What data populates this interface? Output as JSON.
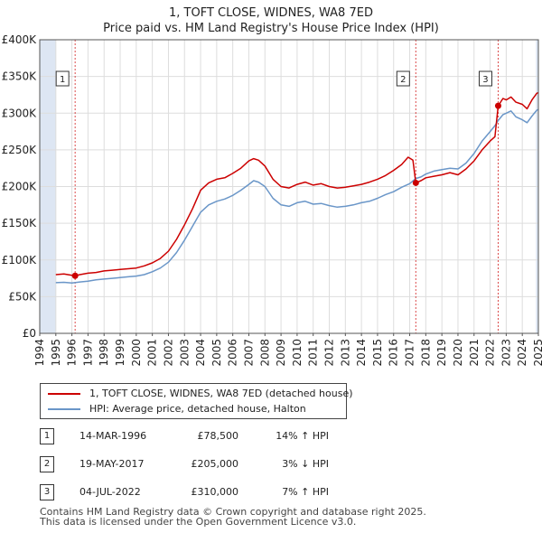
{
  "header": {
    "line1": "1, TOFT CLOSE, WIDNES, WA8 7ED",
    "line2": "Price paid vs. HM Land Registry's House Price Index (HPI)"
  },
  "chart_data": {
    "type": "line",
    "ylim": [
      0,
      400000
    ],
    "xlim": [
      1994,
      2025
    ],
    "y_ticks": [
      {
        "value": 0,
        "label": "£0"
      },
      {
        "value": 50000,
        "label": "£50K"
      },
      {
        "value": 100000,
        "label": "£100K"
      },
      {
        "value": 150000,
        "label": "£150K"
      },
      {
        "value": 200000,
        "label": "£200K"
      },
      {
        "value": 250000,
        "label": "£250K"
      },
      {
        "value": 300000,
        "label": "£300K"
      },
      {
        "value": 350000,
        "label": "£350K"
      },
      {
        "value": 400000,
        "label": "£400K"
      }
    ],
    "x_ticks": [
      "1994",
      "1995",
      "1996",
      "1997",
      "1998",
      "1999",
      "2000",
      "2001",
      "2002",
      "2003",
      "2004",
      "2005",
      "2006",
      "2007",
      "2008",
      "2009",
      "2010",
      "2011",
      "2012",
      "2013",
      "2014",
      "2015",
      "2016",
      "2017",
      "2018",
      "2019",
      "2020",
      "2021",
      "2022",
      "2023",
      "2024",
      "2025"
    ],
    "series": [
      {
        "name": "1, TOFT CLOSE, WIDNES, WA8 7ED (detached house)",
        "color": "#cc0000",
        "points": [
          [
            1995.0,
            80000
          ],
          [
            1995.5,
            81000
          ],
          [
            1996.0,
            79000
          ],
          [
            1996.2,
            78500
          ],
          [
            1996.5,
            80000
          ],
          [
            1997.0,
            82000
          ],
          [
            1997.5,
            83000
          ],
          [
            1998.0,
            85000
          ],
          [
            1998.5,
            86000
          ],
          [
            1999.0,
            87000
          ],
          [
            1999.5,
            88000
          ],
          [
            2000.0,
            89000
          ],
          [
            2000.5,
            92000
          ],
          [
            2001.0,
            96000
          ],
          [
            2001.5,
            102000
          ],
          [
            2002.0,
            112000
          ],
          [
            2002.5,
            128000
          ],
          [
            2003.0,
            148000
          ],
          [
            2003.5,
            170000
          ],
          [
            2004.0,
            195000
          ],
          [
            2004.5,
            205000
          ],
          [
            2005.0,
            210000
          ],
          [
            2005.5,
            212000
          ],
          [
            2006.0,
            218000
          ],
          [
            2006.5,
            225000
          ],
          [
            2007.0,
            235000
          ],
          [
            2007.3,
            238000
          ],
          [
            2007.6,
            236000
          ],
          [
            2008.0,
            228000
          ],
          [
            2008.5,
            210000
          ],
          [
            2009.0,
            200000
          ],
          [
            2009.5,
            198000
          ],
          [
            2010.0,
            203000
          ],
          [
            2010.5,
            206000
          ],
          [
            2011.0,
            202000
          ],
          [
            2011.5,
            204000
          ],
          [
            2012.0,
            200000
          ],
          [
            2012.5,
            198000
          ],
          [
            2013.0,
            199000
          ],
          [
            2013.5,
            201000
          ],
          [
            2014.0,
            203000
          ],
          [
            2014.5,
            206000
          ],
          [
            2015.0,
            210000
          ],
          [
            2015.5,
            215000
          ],
          [
            2016.0,
            222000
          ],
          [
            2016.5,
            230000
          ],
          [
            2016.9,
            240000
          ],
          [
            2017.2,
            236000
          ],
          [
            2017.38,
            205000
          ],
          [
            2017.7,
            208000
          ],
          [
            2018.0,
            212000
          ],
          [
            2018.5,
            214000
          ],
          [
            2019.0,
            216000
          ],
          [
            2019.5,
            219000
          ],
          [
            2020.0,
            216000
          ],
          [
            2020.5,
            224000
          ],
          [
            2021.0,
            235000
          ],
          [
            2021.5,
            250000
          ],
          [
            2022.0,
            262000
          ],
          [
            2022.3,
            268000
          ],
          [
            2022.5,
            310000
          ],
          [
            2022.8,
            320000
          ],
          [
            2023.0,
            318000
          ],
          [
            2023.3,
            322000
          ],
          [
            2023.6,
            315000
          ],
          [
            2024.0,
            312000
          ],
          [
            2024.3,
            306000
          ],
          [
            2024.6,
            318000
          ],
          [
            2024.9,
            327000
          ],
          [
            2025.0,
            328000
          ]
        ]
      },
      {
        "name": "HPI: Average price, detached house, Halton",
        "color": "#6a96c8",
        "points": [
          [
            1995.0,
            69000
          ],
          [
            1995.5,
            69500
          ],
          [
            1996.0,
            68500
          ],
          [
            1996.5,
            70000
          ],
          [
            1997.0,
            71000
          ],
          [
            1997.5,
            73000
          ],
          [
            1998.0,
            74000
          ],
          [
            1998.5,
            75000
          ],
          [
            1999.0,
            76000
          ],
          [
            1999.5,
            77000
          ],
          [
            2000.0,
            78000
          ],
          [
            2000.5,
            80000
          ],
          [
            2001.0,
            84000
          ],
          [
            2001.5,
            89000
          ],
          [
            2002.0,
            97000
          ],
          [
            2002.5,
            110000
          ],
          [
            2003.0,
            127000
          ],
          [
            2003.5,
            146000
          ],
          [
            2004.0,
            165000
          ],
          [
            2004.5,
            175000
          ],
          [
            2005.0,
            180000
          ],
          [
            2005.5,
            183000
          ],
          [
            2006.0,
            188000
          ],
          [
            2006.5,
            195000
          ],
          [
            2007.0,
            203000
          ],
          [
            2007.3,
            208000
          ],
          [
            2007.6,
            206000
          ],
          [
            2008.0,
            200000
          ],
          [
            2008.5,
            184000
          ],
          [
            2009.0,
            175000
          ],
          [
            2009.5,
            173000
          ],
          [
            2010.0,
            178000
          ],
          [
            2010.5,
            180000
          ],
          [
            2011.0,
            176000
          ],
          [
            2011.5,
            177000
          ],
          [
            2012.0,
            174000
          ],
          [
            2012.5,
            172000
          ],
          [
            2013.0,
            173000
          ],
          [
            2013.5,
            175000
          ],
          [
            2014.0,
            178000
          ],
          [
            2014.5,
            180000
          ],
          [
            2015.0,
            184000
          ],
          [
            2015.5,
            189000
          ],
          [
            2016.0,
            193000
          ],
          [
            2016.5,
            199000
          ],
          [
            2017.0,
            204000
          ],
          [
            2017.38,
            211000
          ],
          [
            2017.7,
            213000
          ],
          [
            2018.0,
            217000
          ],
          [
            2018.5,
            221000
          ],
          [
            2019.0,
            223000
          ],
          [
            2019.5,
            225000
          ],
          [
            2020.0,
            224000
          ],
          [
            2020.5,
            232000
          ],
          [
            2021.0,
            245000
          ],
          [
            2021.5,
            262000
          ],
          [
            2022.0,
            275000
          ],
          [
            2022.3,
            283000
          ],
          [
            2022.5,
            290000
          ],
          [
            2022.8,
            298000
          ],
          [
            2023.0,
            300000
          ],
          [
            2023.3,
            303000
          ],
          [
            2023.6,
            295000
          ],
          [
            2024.0,
            291000
          ],
          [
            2024.3,
            287000
          ],
          [
            2024.6,
            296000
          ],
          [
            2024.9,
            304000
          ],
          [
            2025.0,
            305000
          ]
        ]
      }
    ],
    "sales": [
      {
        "num": "1",
        "x": 1996.2,
        "price": 78500
      },
      {
        "num": "2",
        "x": 2017.38,
        "price": 205000
      },
      {
        "num": "3",
        "x": 2022.5,
        "price": 310000
      }
    ],
    "marker_color": "#cc0000",
    "band_color": "#dde6f3",
    "vline_color": "#cc0000"
  },
  "legend": {
    "items": [
      {
        "label": "1, TOFT CLOSE, WIDNES, WA8 7ED (detached house)",
        "color": "#cc0000"
      },
      {
        "label": "HPI: Average price, detached house, Halton",
        "color": "#6a96c8"
      }
    ]
  },
  "sales_table": [
    {
      "num": "1",
      "date": "14-MAR-1996",
      "price": "£78,500",
      "hpi": "14% ↑ HPI"
    },
    {
      "num": "2",
      "date": "19-MAY-2017",
      "price": "£205,000",
      "hpi": "3% ↓ HPI"
    },
    {
      "num": "3",
      "date": "04-JUL-2022",
      "price": "£310,000",
      "hpi": "7% ↑ HPI"
    }
  ],
  "footer": {
    "line1": "Contains HM Land Registry data © Crown copyright and database right 2025.",
    "line2": "This data is licensed under the Open Government Licence v3.0."
  }
}
